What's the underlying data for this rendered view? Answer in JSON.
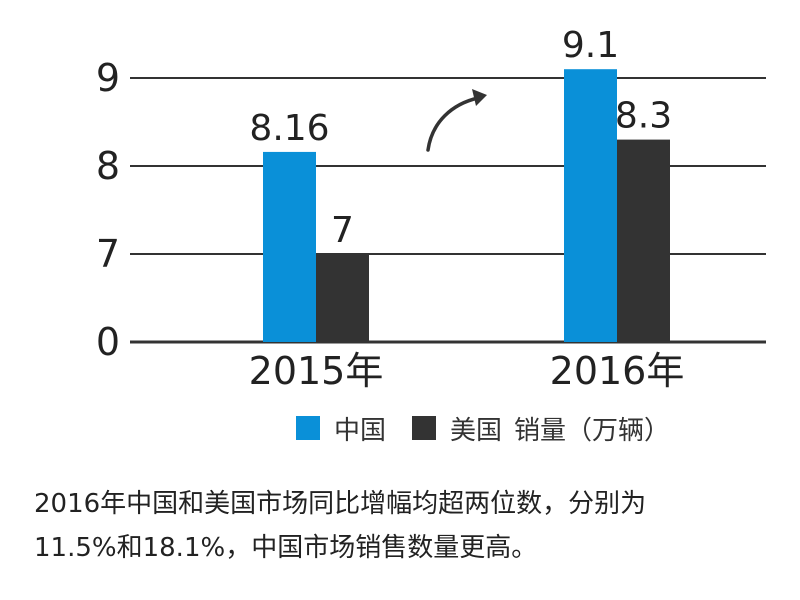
{
  "chart_data": {
    "type": "bar",
    "categories": [
      "2015年",
      "2016年"
    ],
    "series": [
      {
        "name": "中国",
        "values": [
          8.16,
          9.1
        ],
        "labels": [
          "8.16",
          "9.1"
        ],
        "color": "#0a90d8"
      },
      {
        "name": "美国",
        "values": [
          7,
          8.3
        ],
        "labels": [
          "7",
          "8.3"
        ],
        "color": "#333333"
      }
    ],
    "yticks": [
      "0",
      "7",
      "8",
      "9"
    ],
    "ylim": [
      0,
      9.8
    ],
    "y_axis_break": "0 and 7 are drawn one gridline apart (truncated axis)",
    "grid": true,
    "unit_label": "销量（万辆）",
    "legend_position": "bottom",
    "annotation": "curved up-arrow between 2015 and 2016"
  },
  "legend": {
    "china": "中国",
    "usa": "美国",
    "unit": "销量（万辆）"
  },
  "caption": {
    "line1": "2016年中国和美国市场同比增幅均超两位数，分别为",
    "line2": "11.5%和18.1%，中国市场销售数量更高。"
  }
}
